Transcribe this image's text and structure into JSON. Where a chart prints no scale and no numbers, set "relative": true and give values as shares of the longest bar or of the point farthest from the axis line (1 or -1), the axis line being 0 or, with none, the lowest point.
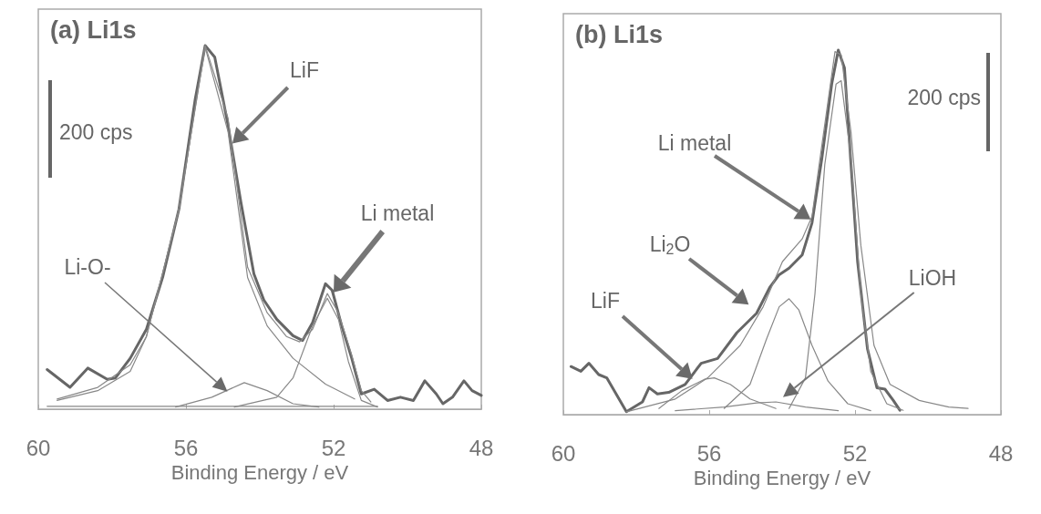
{
  "chart_data": [
    {
      "type": "line",
      "title": "(a) Li1s",
      "xlabel": "Binding Energy / eV",
      "xlim": [
        60,
        48
      ],
      "xticks": [
        60,
        56,
        52,
        48
      ],
      "relative": true,
      "marker": "none",
      "annotations": [
        "LiF",
        "Li metal",
        "Li-O-",
        "200 cps"
      ],
      "series": [
        {
          "color": "#666666",
          "x": [
            59.76,
            59.14,
            58.66,
            58.13,
            57.91,
            57.51,
            57.07,
            56.63,
            56.19,
            55.75,
            55.48,
            55.22,
            54.86,
            54.51,
            54.16,
            53.89,
            53.54,
            53.1,
            52.84,
            52.57,
            52.22,
            52.04,
            51.78,
            51.51,
            51.25,
            50.9,
            50.54,
            50.19,
            49.84,
            49.53,
            49.22,
            49.04,
            48.78,
            48.47,
            48.25,
            48.0
          ],
          "values": [
            0.109,
            0.06,
            0.113,
            0.082,
            0.086,
            0.14,
            0.22,
            0.363,
            0.55,
            0.852,
            1.0,
            0.968,
            0.781,
            0.568,
            0.372,
            0.3,
            0.247,
            0.202,
            0.189,
            0.238,
            0.345,
            0.327,
            0.229,
            0.14,
            0.042,
            0.055,
            0.024,
            0.033,
            0.024,
            0.078,
            0.042,
            0.015,
            0.033,
            0.078,
            0.051,
            0.038
          ]
        },
        {
          "color": "#888888",
          "x": [
            59.49,
            58.39,
            57.51,
            57.07,
            56.19,
            55.48,
            54.86,
            54.33,
            53.8,
            53.28,
            52.92,
            52.57,
            52.17,
            51.87,
            51.51,
            51.25,
            50.99
          ],
          "values": [
            0.024,
            0.051,
            0.104,
            0.2,
            0.55,
            1.0,
            0.8,
            0.39,
            0.265,
            0.2,
            0.185,
            0.22,
            0.318,
            0.265,
            0.149,
            0.051,
            0.02
          ]
        },
        {
          "color": "#888888",
          "x": [
            59.49,
            58.39,
            57.51,
            57.07,
            56.19,
            55.48,
            54.86,
            54.33,
            53.8,
            53.1,
            52.22,
            51.43
          ],
          "values": [
            0.028,
            0.06,
            0.122,
            0.2,
            0.55,
            0.995,
            0.763,
            0.362,
            0.229,
            0.14,
            0.069,
            0.028
          ]
        },
        {
          "color": "#888888",
          "x": [
            54.69,
            53.54,
            53.1,
            52.57,
            52.17,
            51.87,
            51.6,
            51.25,
            50.81
          ],
          "values": [
            0.006,
            0.033,
            0.086,
            0.229,
            0.305,
            0.247,
            0.131,
            0.024,
            0.006
          ]
        },
        {
          "color": "#888888",
          "x": [
            56.28,
            55.3,
            54.42,
            53.8,
            53.1,
            52.4
          ],
          "values": [
            0.006,
            0.033,
            0.073,
            0.051,
            0.015,
            0.006
          ]
        },
        {
          "color": "#888888",
          "x": [
            59.76,
            50.81
          ],
          "values": [
            0.008,
            0.008
          ]
        }
      ]
    },
    {
      "type": "line",
      "title": "(b) Li1s",
      "xlabel": "Binding Energy / eV",
      "xlim": [
        60,
        48
      ],
      "xticks": [
        60,
        56,
        52,
        48
      ],
      "relative": true,
      "marker": "none",
      "annotations": [
        "Li metal",
        "Li$_{2}$O",
        "LiF",
        "LiOH",
        "200 cps"
      ],
      "series": [
        {
          "color": "#666666",
          "x": [
            59.79,
            59.52,
            59.3,
            59.03,
            58.81,
            58.27,
            57.83,
            57.65,
            57.42,
            57.11,
            56.66,
            56.22,
            55.77,
            55.24,
            54.7,
            54.34,
            54.08,
            53.81,
            53.45,
            53.18,
            52.91,
            52.64,
            52.46,
            52.29,
            52.11,
            51.93,
            51.66,
            51.4,
            51.18,
            50.95,
            50.77
          ],
          "values": [
            0.132,
            0.119,
            0.141,
            0.11,
            0.101,
            0.008,
            0.035,
            0.074,
            0.057,
            0.061,
            0.083,
            0.141,
            0.154,
            0.225,
            0.278,
            0.349,
            0.384,
            0.402,
            0.438,
            0.526,
            0.703,
            0.907,
            1.0,
            0.951,
            0.686,
            0.42,
            0.181,
            0.074,
            0.07,
            0.039,
            0.012
          ]
        },
        {
          "color": "#888888",
          "x": [
            58.27,
            56.93,
            56.04,
            55.15,
            54.52,
            53.99,
            53.45,
            53.18,
            52.91,
            52.55,
            52.38,
            52.11,
            51.84,
            51.48,
            51.04,
            50.24,
            49.43,
            48.9
          ],
          "values": [
            0.008,
            0.043,
            0.101,
            0.19,
            0.296,
            0.42,
            0.482,
            0.544,
            0.739,
            0.996,
            0.987,
            0.774,
            0.464,
            0.19,
            0.083,
            0.039,
            0.021,
            0.017
          ]
        },
        {
          "color": "#888888",
          "x": [
            53.81,
            53.36,
            53.1,
            52.83,
            52.52,
            52.38,
            52.11,
            51.84,
            51.57,
            51.13,
            50.68
          ],
          "values": [
            0.017,
            0.101,
            0.331,
            0.686,
            0.907,
            0.916,
            0.703,
            0.331,
            0.119,
            0.03,
            0.012
          ]
        },
        {
          "color": "#888888",
          "x": [
            55.59,
            54.88,
            54.43,
            54.08,
            53.81,
            53.54,
            53.18,
            52.74,
            52.2,
            51.57
          ],
          "values": [
            0.017,
            0.083,
            0.207,
            0.296,
            0.318,
            0.287,
            0.19,
            0.092,
            0.03,
            0.011
          ]
        },
        {
          "color": "#888888",
          "x": [
            57.38,
            56.75,
            56.13,
            55.86,
            55.42,
            54.88,
            54.17
          ],
          "values": [
            0.017,
            0.066,
            0.097,
            0.101,
            0.083,
            0.043,
            0.017
          ]
        },
        {
          "color": "#888888",
          "x": [
            56.93,
            55.59,
            54.7,
            54.17,
            53.36,
            52.46
          ],
          "values": [
            0.011,
            0.021,
            0.032,
            0.035,
            0.021,
            0.011
          ]
        }
      ]
    }
  ]
}
